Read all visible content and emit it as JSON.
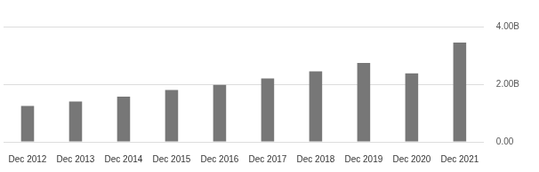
{
  "chart_data": {
    "type": "bar",
    "categories": [
      "Dec 2012",
      "Dec 2013",
      "Dec 2014",
      "Dec 2015",
      "Dec 2016",
      "Dec 2017",
      "Dec 2018",
      "Dec 2019",
      "Dec 2020",
      "Dec 2021"
    ],
    "values": [
      1.25,
      1.4,
      1.57,
      1.8,
      1.98,
      2.2,
      2.45,
      2.74,
      2.38,
      3.45
    ],
    "color": "#777777",
    "ylim": [
      0,
      4
    ],
    "yticks": [
      {
        "value": 0,
        "label": "0.00"
      },
      {
        "value": 2,
        "label": "2.00B"
      },
      {
        "value": 4,
        "label": "4.00B"
      }
    ],
    "grid": true
  }
}
